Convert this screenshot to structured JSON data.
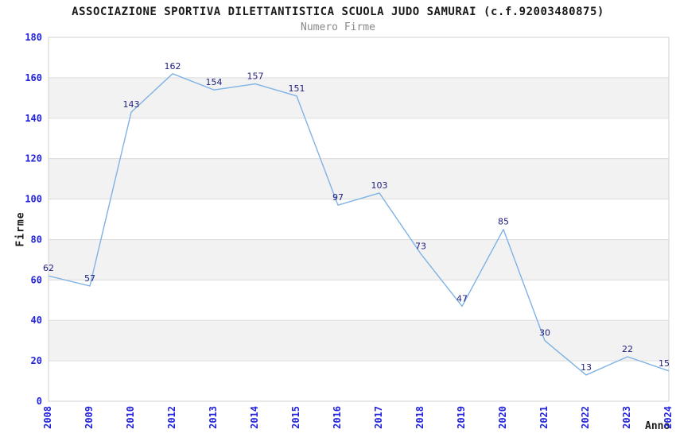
{
  "chart_data": {
    "type": "line",
    "title": "ASSOCIAZIONE SPORTIVA DILETTANTISTICA SCUOLA JUDO SAMURAI (c.f.92003480875)",
    "subtitle": "Numero Firme",
    "xlabel": "Anno",
    "ylabel": "Firme",
    "categories": [
      "2008",
      "2009",
      "2010",
      "2012",
      "2013",
      "2014",
      "2015",
      "2016",
      "2017",
      "2018",
      "2019",
      "2020",
      "2021",
      "2022",
      "2023",
      "2024"
    ],
    "values": [
      62,
      57,
      143,
      162,
      154,
      157,
      151,
      97,
      103,
      73,
      47,
      85,
      30,
      13,
      22,
      15
    ],
    "ylim": [
      0,
      180
    ],
    "ytick_step": 20,
    "yticks": [
      0,
      20,
      40,
      60,
      80,
      100,
      120,
      140,
      160,
      180
    ],
    "grid": "horizontal-lines-with-alternating-bands",
    "legend": "none",
    "data_labels_shown": true,
    "colors": {
      "line": "#7FB2E5",
      "tick_label": "#2222DD",
      "data_label": "#202080",
      "band": "#F2F2F2",
      "gridline": "#DCDCDC",
      "plot_border": "#D0D0D0",
      "title": "#1A1A1A",
      "subtitle": "#888888",
      "axis_title": "#1A1A1A",
      "background": "#FFFFFF"
    }
  }
}
